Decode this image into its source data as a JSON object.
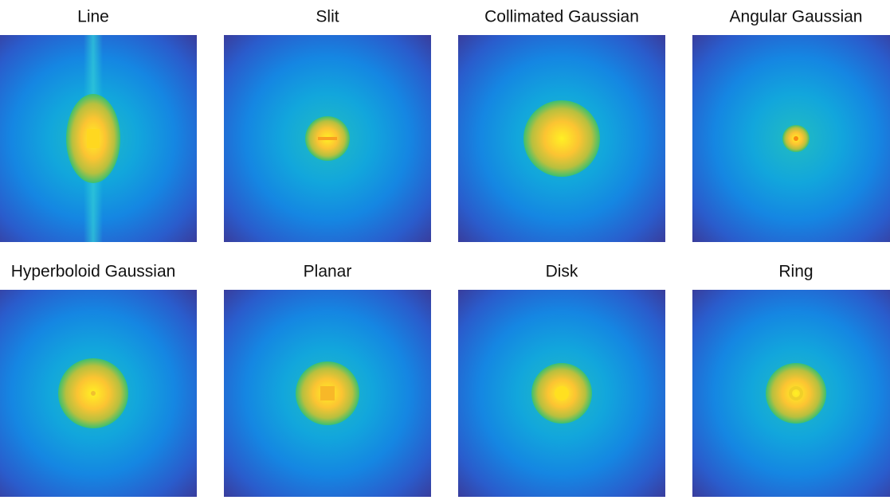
{
  "panels": [
    {
      "title": "Line"
    },
    {
      "title": "Slit"
    },
    {
      "title": "Collimated Gaussian"
    },
    {
      "title": "Angular Gaussian"
    },
    {
      "title": "Hyperboloid Gaussian"
    },
    {
      "title": "Planar"
    },
    {
      "title": "Disk"
    },
    {
      "title": "Ring"
    }
  ]
}
